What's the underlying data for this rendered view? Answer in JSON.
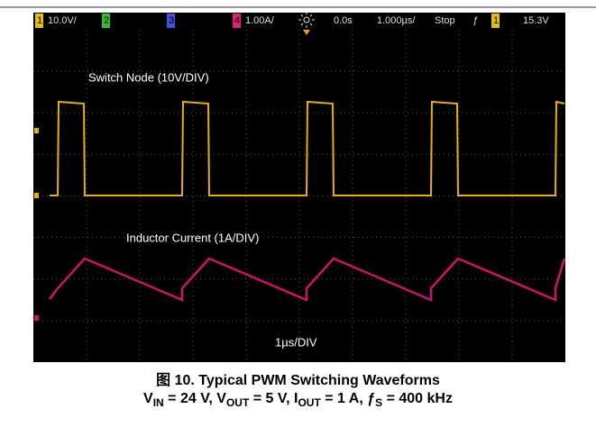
{
  "scope": {
    "status_bar": {
      "ch1": "1",
      "ch1_scale": "10.0V/",
      "ch2": "2",
      "ch3": "3",
      "ch4": "4",
      "ch4_scale": "1.00A/",
      "delay": "0.0s",
      "timebase": "1.000µs/",
      "state": "Stop",
      "trigger_slope": "ƒ",
      "trigger_source": "1",
      "trigger_level": "15.3V"
    },
    "labels": {
      "switch_node": "Switch Node (10V/DIV)",
      "inductor_current": "Inductor Current (1A/DIV)",
      "time_scale": "1µs/DIV"
    }
  },
  "caption": {
    "line1": "图 10. Typical PWM Switching Waveforms",
    "line2": [
      {
        "text": "V"
      },
      {
        "sub": "IN"
      },
      {
        "text": " = 24 V, V"
      },
      {
        "sub": "OUT"
      },
      {
        "text": " = 5 V, I"
      },
      {
        "sub": "OUT"
      },
      {
        "text": " = 1 A, ƒ"
      },
      {
        "sub": "S"
      },
      {
        "text": " = 400 kHz"
      }
    ]
  }
}
